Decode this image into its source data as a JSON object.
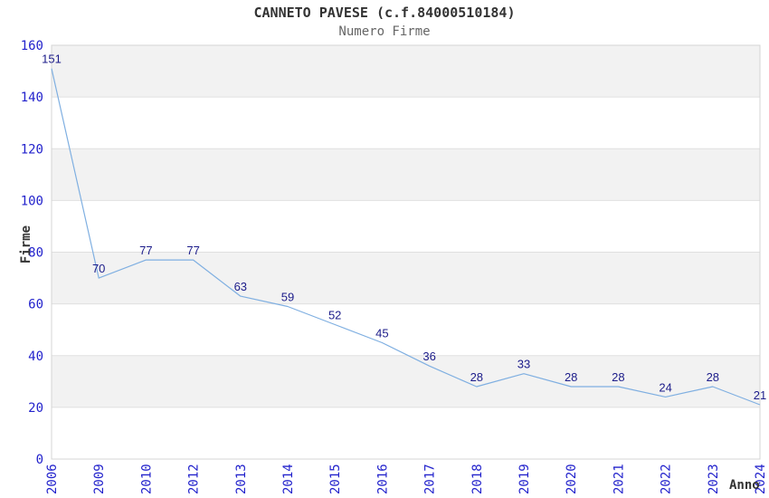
{
  "chart_data": {
    "type": "line",
    "title": "CANNETO PAVESE (c.f.84000510184)",
    "subtitle": "Numero Firme",
    "xlabel": "Anno",
    "ylabel": "Firme",
    "categories": [
      "2006",
      "2009",
      "2010",
      "2012",
      "2013",
      "2014",
      "2015",
      "2016",
      "2017",
      "2018",
      "2019",
      "2020",
      "2021",
      "2022",
      "2023",
      "2024"
    ],
    "values": [
      151,
      70,
      77,
      77,
      63,
      59,
      52,
      45,
      36,
      28,
      33,
      28,
      28,
      24,
      28,
      21
    ],
    "ylim": [
      0,
      160
    ],
    "yticks": [
      0,
      20,
      40,
      60,
      80,
      100,
      120,
      140,
      160
    ],
    "ytick_step": 20,
    "grid": "horizontal-bands",
    "legend": null,
    "data_labels_visible": true,
    "colors": {
      "line": "#7fafe1",
      "tick_label": "#2222cc",
      "data_label": "#1c1c8a",
      "band_fill": "#f2f2f2",
      "grid_line": "#e0e0e0",
      "plot_border": "#d4d4d4",
      "title": "#333333",
      "subtitle": "#666666",
      "axis_title": "#333333",
      "background": "#ffffff"
    }
  }
}
